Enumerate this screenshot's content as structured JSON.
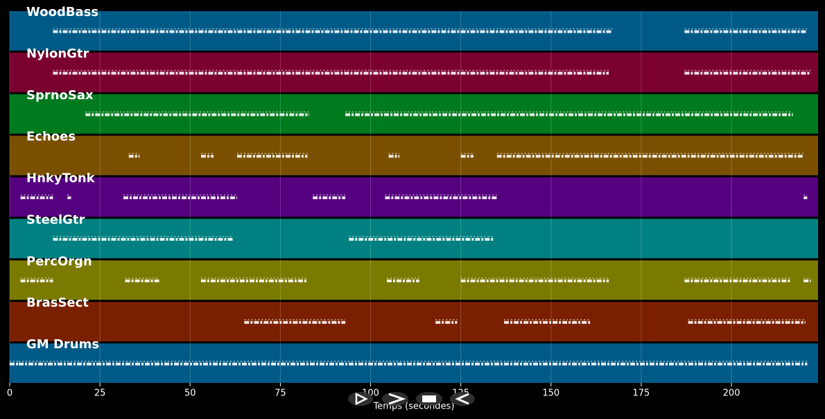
{
  "chart_data": {
    "type": "piano-roll",
    "xlabel": "Temps (secondes)",
    "xlim": [
      0,
      224
    ],
    "xticks": [
      0,
      25,
      50,
      75,
      100,
      125,
      150,
      175,
      200
    ],
    "grid": true,
    "tracks": [
      {
        "name": "WoodBass",
        "color": "#005a87",
        "notes": [
          [
            12,
            167
          ],
          [
            187,
            221
          ]
        ]
      },
      {
        "name": "NylonGtr",
        "color": "#7a0030",
        "notes": [
          [
            12,
            166
          ],
          [
            187,
            222
          ]
        ]
      },
      {
        "name": "SprnoSax",
        "color": "#007a1e",
        "notes": [
          [
            21,
            83
          ],
          [
            93,
            217
          ]
        ]
      },
      {
        "name": "Echoes",
        "color": "#7a5000",
        "notes": [
          [
            33,
            36
          ],
          [
            53,
            56.5
          ],
          [
            63,
            82.5
          ],
          [
            105,
            108
          ],
          [
            125,
            128.5
          ],
          [
            135,
            220
          ]
        ]
      },
      {
        "name": "HnkyTonk",
        "color": "#55007f",
        "notes": [
          [
            3,
            12
          ],
          [
            16,
            17
          ],
          [
            31.5,
            63
          ],
          [
            84,
            93
          ],
          [
            104,
            135
          ],
          [
            220,
            221
          ]
        ]
      },
      {
        "name": "SteelGtr",
        "color": "#008080",
        "notes": [
          [
            12,
            62
          ],
          [
            94,
            134
          ]
        ]
      },
      {
        "name": "PercOrgn",
        "color": "#7a7a00",
        "notes": [
          [
            3,
            12
          ],
          [
            32,
            41.5
          ],
          [
            53,
            82.5
          ],
          [
            104.5,
            113.5
          ],
          [
            125,
            166
          ],
          [
            187,
            216.5
          ],
          [
            220,
            222
          ]
        ]
      },
      {
        "name": "BrasSect",
        "color": "#7a2000",
        "notes": [
          [
            65,
            93
          ],
          [
            118,
            124
          ],
          [
            137,
            161
          ],
          [
            188,
            220.5
          ]
        ]
      },
      {
        "name": "GM Drums",
        "color": "#005a87",
        "notes": [
          [
            0,
            2.5
          ],
          [
            2.5,
            221
          ]
        ]
      }
    ]
  }
}
